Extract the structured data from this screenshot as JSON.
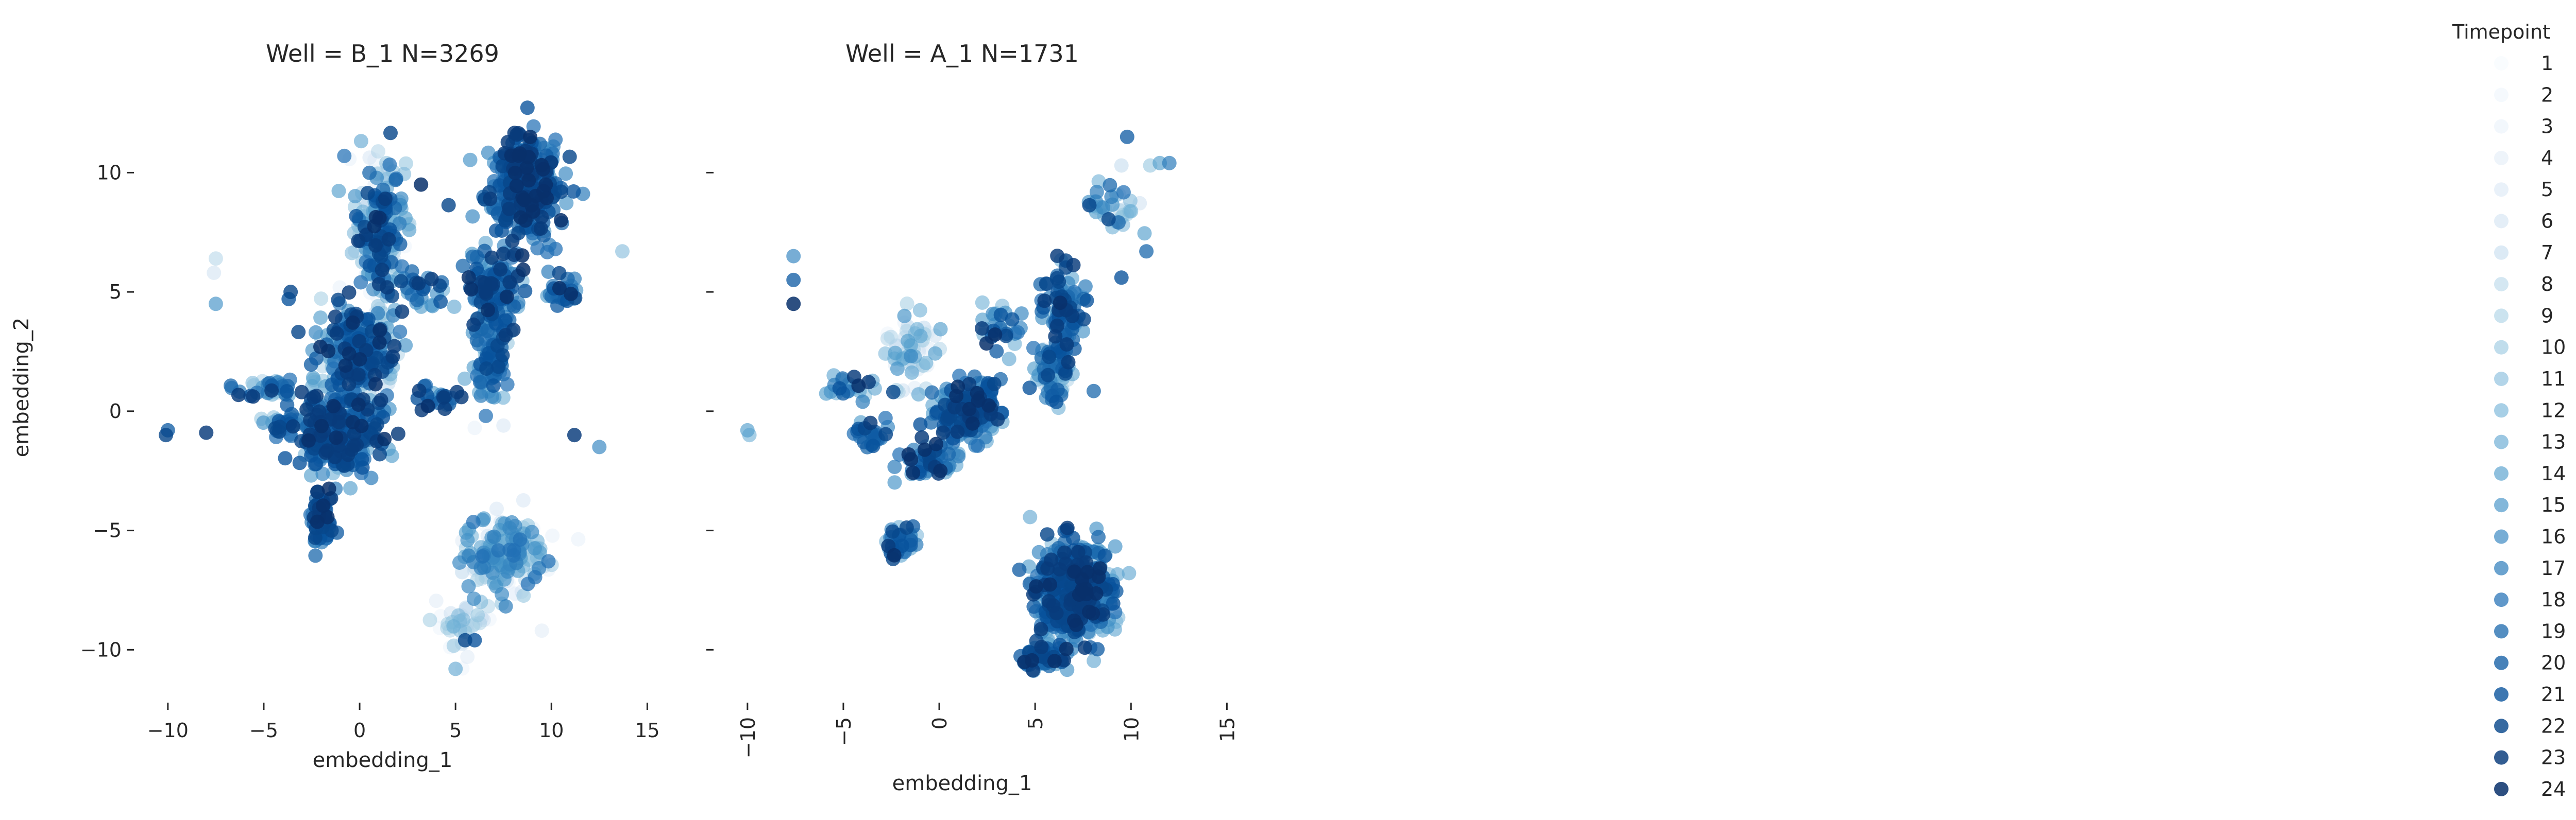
{
  "chart_data": [
    {
      "type": "scatter",
      "title": "Well = B_1 N=3269",
      "xlabel": "embedding_1",
      "ylabel": "embedding_2",
      "xlim": [
        -11.5,
        15.5
      ],
      "ylim": [
        -12,
        14
      ],
      "xticks": [
        -10,
        -5,
        0,
        5,
        10,
        15
      ],
      "yticks": [
        -10,
        -5,
        0,
        5,
        10
      ],
      "xtick_labels": [
        "−10",
        "−5",
        "0",
        "5",
        "10",
        "15"
      ],
      "ytick_labels": [
        "−10",
        "−5",
        "0",
        "5",
        "10"
      ],
      "xtick_rotation": 0,
      "grid": false,
      "clusters": [
        {
          "cx": 1.0,
          "cy": 7.5,
          "sx": 1.0,
          "sy": 2.5,
          "n": 260,
          "tmin": 1,
          "tmax": 24
        },
        {
          "cx": 8.5,
          "cy": 9.5,
          "sx": 1.6,
          "sy": 1.7,
          "n": 360,
          "tmin": 14,
          "tmax": 24
        },
        {
          "cx": 7.0,
          "cy": 5.0,
          "sx": 1.2,
          "sy": 1.5,
          "n": 140,
          "tmin": 12,
          "tmax": 24
        },
        {
          "cx": 6.8,
          "cy": 2.0,
          "sx": 0.7,
          "sy": 1.4,
          "n": 80,
          "tmin": 10,
          "tmax": 22
        },
        {
          "cx": 0.0,
          "cy": 2.5,
          "sx": 1.6,
          "sy": 1.5,
          "n": 280,
          "tmin": 6,
          "tmax": 24
        },
        {
          "cx": -1.0,
          "cy": -1.0,
          "sx": 1.6,
          "sy": 1.4,
          "n": 320,
          "tmin": 12,
          "tmax": 24
        },
        {
          "cx": -2.0,
          "cy": -4.5,
          "sx": 0.5,
          "sy": 1.2,
          "n": 70,
          "tmin": 16,
          "tmax": 24
        },
        {
          "cx": 7.5,
          "cy": -6.0,
          "sx": 1.7,
          "sy": 1.3,
          "n": 220,
          "tmin": 1,
          "tmax": 18
        },
        {
          "cx": 5.5,
          "cy": -9.0,
          "sx": 1.2,
          "sy": 1.0,
          "n": 40,
          "tmin": 1,
          "tmax": 12
        },
        {
          "cx": -4.5,
          "cy": 1.0,
          "sx": 1.6,
          "sy": 0.4,
          "n": 40,
          "tmin": 8,
          "tmax": 24
        },
        {
          "cx": -4.0,
          "cy": -0.6,
          "sx": 1.0,
          "sy": 0.4,
          "n": 30,
          "tmin": 10,
          "tmax": 24
        },
        {
          "cx": 4.0,
          "cy": 0.5,
          "sx": 1.2,
          "sy": 0.4,
          "n": 25,
          "tmin": 14,
          "tmax": 24
        },
        {
          "cx": 3.5,
          "cy": 5.0,
          "sx": 1.0,
          "sy": 0.5,
          "n": 25,
          "tmin": 12,
          "tmax": 24
        },
        {
          "cx": 10.5,
          "cy": 5.0,
          "sx": 0.8,
          "sy": 0.6,
          "n": 30,
          "tmin": 14,
          "tmax": 24
        }
      ],
      "points": [
        {
          "x": -10.0,
          "y": -0.8,
          "t": 20
        },
        {
          "x": -10.1,
          "y": -1.0,
          "t": 22
        },
        {
          "x": -7.5,
          "y": 6.4,
          "t": 8
        },
        {
          "x": -7.6,
          "y": 5.8,
          "t": 6
        },
        {
          "x": -7.5,
          "y": 4.5,
          "t": 15
        },
        {
          "x": -3.6,
          "y": 5.0,
          "t": 22
        },
        {
          "x": -3.7,
          "y": 4.7,
          "t": 21
        },
        {
          "x": -0.8,
          "y": 10.7,
          "t": 18
        },
        {
          "x": 3.2,
          "y": 9.5,
          "t": 24
        },
        {
          "x": 6.0,
          "y": -0.7,
          "t": 3
        },
        {
          "x": 7.5,
          "y": -0.6,
          "t": 5
        },
        {
          "x": 11.2,
          "y": -1.0,
          "t": 23
        },
        {
          "x": 12.5,
          "y": -1.5,
          "t": 16
        },
        {
          "x": 13.7,
          "y": 6.7,
          "t": 11
        },
        {
          "x": 5.0,
          "y": -10.8,
          "t": 13
        },
        {
          "x": 6.0,
          "y": -9.6,
          "t": 21
        },
        {
          "x": 5.5,
          "y": -9.6,
          "t": 22
        },
        {
          "x": -8.0,
          "y": -0.9,
          "t": 23
        },
        {
          "x": 9.5,
          "y": -9.2,
          "t": 4
        }
      ]
    },
    {
      "type": "scatter",
      "title": "Well = A_1 N=1731",
      "xlabel": "embedding_1",
      "ylabel": "",
      "xlim": [
        -11.5,
        15.5
      ],
      "ylim": [
        -12,
        14
      ],
      "xticks": [
        -10,
        -5,
        0,
        5,
        10,
        15
      ],
      "yticks": [
        -10,
        -5,
        0,
        5,
        10
      ],
      "xtick_labels": [
        "−10",
        "−5",
        "0",
        "5",
        "10",
        "15"
      ],
      "ytick_labels": [],
      "xtick_rotation": -90,
      "grid": false,
      "clusters": [
        {
          "cx": 7.0,
          "cy": -7.5,
          "sx": 1.6,
          "sy": 1.6,
          "n": 520,
          "tmin": 10,
          "tmax": 24
        },
        {
          "cx": 5.5,
          "cy": -10.3,
          "sx": 1.0,
          "sy": 0.5,
          "n": 60,
          "tmin": 12,
          "tmax": 24
        },
        {
          "cx": 6.5,
          "cy": 4.0,
          "sx": 0.8,
          "sy": 1.5,
          "n": 110,
          "tmin": 12,
          "tmax": 24
        },
        {
          "cx": 6.0,
          "cy": 1.5,
          "sx": 0.8,
          "sy": 1.2,
          "n": 60,
          "tmin": 6,
          "tmax": 22
        },
        {
          "cx": 1.5,
          "cy": 0.0,
          "sx": 1.5,
          "sy": 1.0,
          "n": 180,
          "tmin": 12,
          "tmax": 24
        },
        {
          "cx": -1.5,
          "cy": 2.5,
          "sx": 1.2,
          "sy": 1.3,
          "n": 70,
          "tmin": 1,
          "tmax": 16
        },
        {
          "cx": -0.5,
          "cy": -2.0,
          "sx": 1.3,
          "sy": 0.8,
          "n": 60,
          "tmin": 12,
          "tmax": 24
        },
        {
          "cx": -2.0,
          "cy": -5.5,
          "sx": 0.6,
          "sy": 0.6,
          "n": 40,
          "tmin": 10,
          "tmax": 24
        },
        {
          "cx": -4.5,
          "cy": 1.0,
          "sx": 1.2,
          "sy": 0.4,
          "n": 25,
          "tmin": 10,
          "tmax": 24
        },
        {
          "cx": -3.5,
          "cy": -1.0,
          "sx": 0.8,
          "sy": 0.7,
          "n": 25,
          "tmin": 14,
          "tmax": 24
        },
        {
          "cx": 9.0,
          "cy": 8.5,
          "sx": 1.2,
          "sy": 1.0,
          "n": 35,
          "tmin": 6,
          "tmax": 22
        },
        {
          "cx": 3.0,
          "cy": 3.5,
          "sx": 1.0,
          "sy": 1.0,
          "n": 30,
          "tmin": 10,
          "tmax": 24
        }
      ],
      "points": [
        {
          "x": -10.0,
          "y": -0.8,
          "t": 14
        },
        {
          "x": -9.9,
          "y": -1.0,
          "t": 12
        },
        {
          "x": -7.6,
          "y": 6.5,
          "t": 16
        },
        {
          "x": -7.6,
          "y": 5.5,
          "t": 20
        },
        {
          "x": -7.6,
          "y": 4.5,
          "t": 24
        },
        {
          "x": 9.8,
          "y": 11.5,
          "t": 20
        },
        {
          "x": 11.5,
          "y": 10.4,
          "t": 14
        },
        {
          "x": 11.0,
          "y": 10.3,
          "t": 10
        },
        {
          "x": 10.8,
          "y": 6.7,
          "t": 19
        },
        {
          "x": 9.5,
          "y": 10.3,
          "t": 7
        },
        {
          "x": 9.5,
          "y": 5.6,
          "t": 21
        },
        {
          "x": 12.0,
          "y": 10.4,
          "t": 17
        },
        {
          "x": -5.5,
          "y": 1.5,
          "t": 13
        }
      ]
    }
  ],
  "legend": {
    "title": "Timepoint",
    "entries": [
      "1",
      "2",
      "3",
      "4",
      "5",
      "6",
      "7",
      "8",
      "9",
      "10",
      "11",
      "12",
      "13",
      "14",
      "15",
      "16",
      "17",
      "18",
      "19",
      "20",
      "21",
      "22",
      "23",
      "24"
    ],
    "placement": "right"
  },
  "colors": {
    "t_low": "#eaf2fb",
    "t_high": "#08306b",
    "ramp": [
      "#f7fbff",
      "#deebf7",
      "#c6dbef",
      "#9ecae1",
      "#6baed6",
      "#4292c6",
      "#2171b5",
      "#08519c",
      "#08306b"
    ],
    "marker_alpha": 0.75,
    "axis": "#262626"
  }
}
